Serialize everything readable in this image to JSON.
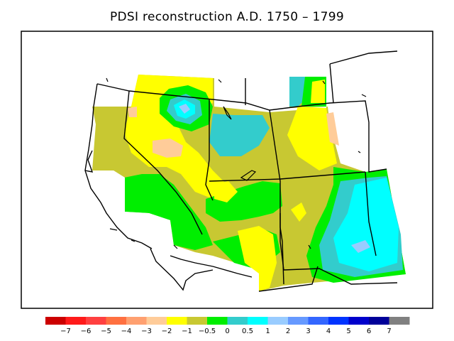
{
  "title": "PDSI reconstruction A.D. 1750 – 1799",
  "legend": {
    "colors": [
      "#cc0000",
      "#ff1a1a",
      "#ff4040",
      "#ff7040",
      "#ffa070",
      "#ffcc99",
      "#ffff00",
      "#c8c832",
      "#00ee00",
      "#33cccc",
      "#00ffff",
      "#99ccff",
      "#6699ff",
      "#3366ff",
      "#0033ff",
      "#0000cc",
      "#000099",
      "#808080"
    ],
    "labels": [
      "−7",
      "−6",
      "−5",
      "−4",
      "−3",
      "−2",
      "−1",
      "−0.5",
      "0",
      "0.5",
      "1",
      "2",
      "3",
      "4",
      "5",
      "6",
      "7"
    ]
  },
  "palette": {
    "olive": "#c8c832",
    "yellow": "#ffff00",
    "green": "#00ee00",
    "teal": "#33cccc",
    "cyan": "#00ffff",
    "peach": "#ffcc99",
    "lightblue": "#99ccff"
  }
}
